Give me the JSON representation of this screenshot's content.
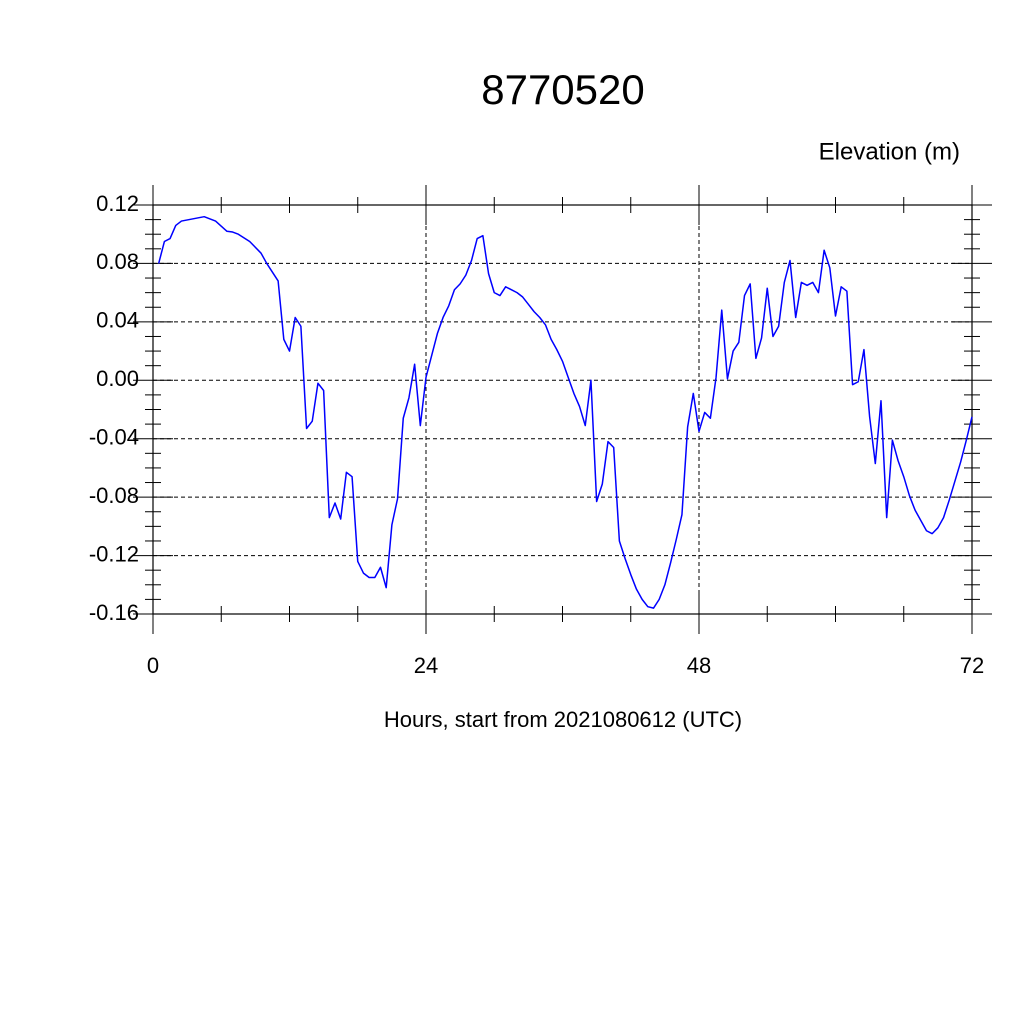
{
  "chart_data": {
    "type": "line",
    "title": "8770520",
    "subtitle": "Elevation (m)",
    "xlabel": "Hours, start from 2021080612 (UTC)",
    "xlim": [
      0,
      72
    ],
    "xticks": [
      0,
      24,
      48,
      72
    ],
    "ylim": [
      -0.16,
      0.12
    ],
    "yticks": [
      0.12,
      0.08,
      0.04,
      {
        "value": 0,
        "label": "0.00"
      },
      -0.04,
      -0.08,
      -0.12,
      -0.16
    ],
    "grid": true,
    "x": [
      0.5,
      1.0,
      1.5,
      2.0,
      2.5,
      4.5,
      5.5,
      6.5,
      7.0,
      7.5,
      8.5,
      9.5,
      10.0,
      11.0,
      11.5,
      12.0,
      12.5,
      13.0,
      13.5,
      14.0,
      14.5,
      15.0,
      15.5,
      16.0,
      16.5,
      17.0,
      17.5,
      18.0,
      18.5,
      19.0,
      19.5,
      20.0,
      20.5,
      21.0,
      21.5,
      22.0,
      22.5,
      23.0,
      23.5,
      24.0,
      24.5,
      25.0,
      25.5,
      26.0,
      26.5,
      27.0,
      27.5,
      28.0,
      28.5,
      29.0,
      29.5,
      30.0,
      30.5,
      31.0,
      31.5,
      32.0,
      32.5,
      33.0,
      33.5,
      34.0,
      34.5,
      35.0,
      35.5,
      36.0,
      36.5,
      37.0,
      37.5,
      38.0,
      38.5,
      39.0,
      39.5,
      40.0,
      40.5,
      41.0,
      41.5,
      42.0,
      42.5,
      43.0,
      43.5,
      44.0,
      44.5,
      45.0,
      45.5,
      46.0,
      46.5,
      47.0,
      47.5,
      48.0,
      48.5,
      49.0,
      49.5,
      50.0,
      50.5,
      51.0,
      51.5,
      52.0,
      52.5,
      53.0,
      53.5,
      54.0,
      54.5,
      55.0,
      55.5,
      56.0,
      56.5,
      57.0,
      57.5,
      58.0,
      58.5,
      59.0,
      59.5,
      60.0,
      60.5,
      61.0,
      61.5,
      62.0,
      62.5,
      63.0,
      63.5,
      64.0,
      64.5,
      65.0,
      65.5,
      66.0,
      66.5,
      67.0,
      67.5,
      68.0,
      68.5,
      69.0,
      69.5,
      70.0,
      70.5,
      71.0,
      71.5,
      72.0
    ],
    "series": [
      {
        "name": "Elevation",
        "color": "#0000ff",
        "values": [
          0.08,
          0.095,
          0.097,
          0.106,
          0.109,
          0.112,
          0.109,
          0.102,
          0.1015,
          0.1,
          0.095,
          0.087,
          0.08,
          0.068,
          0.028,
          0.02,
          0.043,
          0.037,
          -0.033,
          -0.028,
          -0.002,
          -0.007,
          -0.094,
          -0.084,
          -0.095,
          -0.063,
          -0.066,
          -0.124,
          -0.132,
          -0.135,
          -0.135,
          -0.128,
          -0.142,
          -0.099,
          -0.081,
          -0.026,
          -0.012,
          0.011,
          -0.031,
          0.002,
          0.017,
          0.032,
          0.043,
          0.051,
          0.062,
          0.066,
          0.072,
          0.082,
          0.097,
          0.099,
          0.073,
          0.06,
          0.058,
          0.064,
          0.062,
          0.06,
          0.057,
          0.052,
          0.047,
          0.043,
          0.038,
          0.028,
          0.021,
          0.013,
          0.002,
          -0.009,
          -0.018,
          -0.031,
          0.0,
          -0.083,
          -0.071,
          -0.042,
          -0.046,
          -0.11,
          -0.122,
          -0.133,
          -0.143,
          -0.15,
          -0.155,
          -0.156,
          -0.15,
          -0.14,
          -0.125,
          -0.109,
          -0.092,
          -0.032,
          -0.009,
          -0.035,
          -0.022,
          -0.026,
          0.002,
          0.048,
          0.001,
          0.02,
          0.026,
          0.058,
          0.066,
          0.015,
          0.029,
          0.063,
          0.03,
          0.037,
          0.067,
          0.082,
          0.043,
          0.067,
          0.065,
          0.067,
          0.06,
          0.089,
          0.077,
          0.044,
          0.064,
          0.061,
          -0.003,
          -0.001,
          0.021,
          -0.025,
          -0.057,
          -0.014,
          -0.094,
          -0.041,
          -0.055,
          -0.066,
          -0.079,
          -0.089,
          -0.096,
          -0.103,
          -0.105,
          -0.101,
          -0.094,
          -0.082,
          -0.069,
          -0.056,
          -0.041,
          -0.025
        ]
      }
    ]
  }
}
